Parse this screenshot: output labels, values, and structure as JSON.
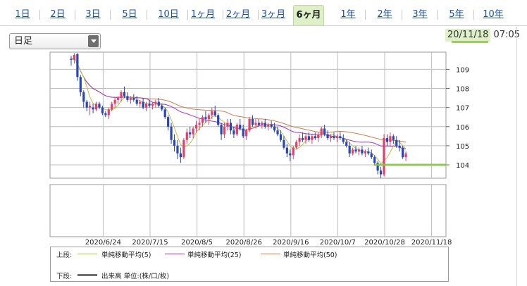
{
  "tabs": [
    {
      "label": "1日"
    },
    {
      "label": "2日"
    },
    {
      "label": "3日"
    },
    {
      "label": "5日"
    },
    {
      "label": "10日"
    },
    {
      "label": "1ヶ月"
    },
    {
      "label": "2ヶ月"
    },
    {
      "label": "3ヶ月"
    },
    {
      "label": "6ヶ月",
      "active": true
    },
    {
      "label": "1年"
    },
    {
      "label": "2年"
    },
    {
      "label": "3年"
    },
    {
      "label": "5年"
    },
    {
      "label": "10年"
    }
  ],
  "period_select": {
    "value": "日足"
  },
  "timestamp": {
    "date": "20/11/18",
    "time": "07:05"
  },
  "colors": {
    "up": "#e0406a",
    "down": "#2846b8",
    "ma5": "#bdbd45",
    "ma25": "#a433b8",
    "ma50": "#d07a4a",
    "highlight": "#8bc34a",
    "grid": "#bdbdbd"
  },
  "chart_data": {
    "type": "candlestick",
    "y_ticks": [
      104,
      105,
      106,
      107,
      108,
      109
    ],
    "ylim": [
      103.3,
      109.9
    ],
    "x_tick_labels": [
      "2020/6/24",
      "2020/7/15",
      "2020/8/5",
      "2020/8/26",
      "2020/9/16",
      "2020/10/7",
      "2020/10/28",
      "2020/11/18"
    ],
    "x_ticks_at_bar": [
      10,
      25,
      40,
      55,
      70,
      85,
      100,
      115
    ],
    "support_level": 104.0,
    "candles": [
      [
        109.55,
        109.7,
        109.2,
        109.5
      ],
      [
        109.5,
        109.85,
        109.3,
        109.75
      ],
      [
        109.8,
        109.85,
        108.4,
        108.6
      ],
      [
        108.6,
        108.7,
        107.6,
        107.8
      ],
      [
        107.8,
        107.9,
        107.0,
        107.3
      ],
      [
        107.3,
        107.4,
        106.8,
        107.0
      ],
      [
        107.0,
        107.3,
        106.6,
        107.1
      ],
      [
        107.0,
        107.2,
        106.7,
        106.9
      ],
      [
        106.9,
        107.3,
        106.8,
        107.2
      ],
      [
        107.2,
        107.3,
        106.9,
        107.0
      ],
      [
        107.0,
        107.1,
        106.6,
        106.7
      ],
      [
        106.7,
        106.8,
        106.5,
        106.6
      ],
      [
        106.6,
        107.0,
        106.4,
        106.9
      ],
      [
        106.9,
        107.3,
        106.8,
        107.2
      ],
      [
        107.2,
        107.5,
        107.0,
        107.4
      ],
      [
        107.4,
        107.6,
        107.2,
        107.5
      ],
      [
        107.5,
        107.9,
        107.3,
        107.8
      ],
      [
        107.8,
        108.1,
        107.5,
        107.6
      ],
      [
        107.6,
        107.8,
        107.3,
        107.4
      ],
      [
        107.4,
        107.6,
        107.2,
        107.5
      ],
      [
        107.5,
        107.7,
        107.3,
        107.4
      ],
      [
        107.4,
        107.6,
        107.1,
        107.2
      ],
      [
        107.2,
        107.4,
        107.0,
        107.3
      ],
      [
        107.3,
        107.5,
        106.9,
        107.0
      ],
      [
        107.0,
        107.3,
        106.8,
        107.2
      ],
      [
        107.2,
        107.4,
        107.0,
        107.1
      ],
      [
        107.1,
        107.3,
        106.9,
        107.2
      ],
      [
        107.2,
        107.4,
        107.0,
        107.3
      ],
      [
        107.3,
        107.5,
        107.0,
        107.1
      ],
      [
        107.1,
        107.2,
        106.8,
        106.9
      ],
      [
        106.9,
        107.0,
        106.4,
        106.5
      ],
      [
        106.5,
        106.6,
        105.8,
        106.0
      ],
      [
        106.0,
        106.2,
        105.1,
        105.3
      ],
      [
        105.3,
        105.6,
        104.7,
        105.0
      ],
      [
        105.0,
        105.3,
        104.3,
        104.6
      ],
      [
        104.6,
        104.9,
        104.1,
        104.4
      ],
      [
        104.4,
        105.4,
        104.3,
        105.3
      ],
      [
        105.3,
        105.9,
        105.1,
        105.7
      ],
      [
        105.7,
        106.0,
        105.4,
        105.6
      ],
      [
        105.6,
        106.0,
        105.4,
        105.9
      ],
      [
        105.9,
        106.3,
        105.7,
        106.1
      ],
      [
        106.1,
        106.4,
        105.8,
        106.2
      ],
      [
        106.2,
        106.6,
        106.0,
        106.5
      ],
      [
        106.5,
        106.8,
        106.2,
        106.4
      ],
      [
        106.4,
        106.7,
        106.1,
        106.6
      ],
      [
        106.6,
        107.0,
        106.4,
        106.8
      ],
      [
        106.8,
        107.1,
        106.5,
        106.6
      ],
      [
        106.6,
        106.7,
        106.0,
        106.1
      ],
      [
        106.1,
        106.2,
        105.3,
        105.6
      ],
      [
        105.6,
        106.2,
        105.4,
        106.0
      ],
      [
        106.0,
        106.4,
        105.8,
        106.2
      ],
      [
        106.2,
        106.4,
        105.6,
        105.8
      ],
      [
        105.8,
        106.0,
        105.4,
        105.6
      ],
      [
        105.6,
        106.2,
        105.5,
        106.1
      ],
      [
        106.1,
        106.4,
        105.8,
        105.9
      ],
      [
        105.9,
        106.1,
        105.4,
        105.5
      ],
      [
        105.5,
        105.9,
        105.3,
        105.8
      ],
      [
        105.8,
        106.5,
        105.7,
        106.4
      ],
      [
        106.4,
        106.6,
        106.0,
        106.1
      ],
      [
        106.1,
        106.4,
        105.9,
        106.2
      ],
      [
        106.2,
        106.4,
        106.0,
        106.1
      ],
      [
        106.1,
        106.3,
        105.9,
        106.2
      ],
      [
        106.2,
        106.4,
        105.9,
        106.0
      ],
      [
        106.0,
        106.2,
        105.8,
        106.1
      ],
      [
        106.1,
        106.3,
        105.9,
        106.0
      ],
      [
        106.0,
        106.2,
        105.7,
        105.8
      ],
      [
        105.8,
        106.0,
        105.5,
        105.6
      ],
      [
        105.6,
        105.8,
        105.2,
        105.3
      ],
      [
        105.3,
        105.5,
        104.8,
        104.9
      ],
      [
        104.9,
        105.1,
        104.4,
        104.6
      ],
      [
        104.6,
        104.8,
        104.2,
        104.5
      ],
      [
        104.5,
        105.0,
        104.3,
        104.9
      ],
      [
        104.9,
        105.3,
        104.8,
        105.2
      ],
      [
        105.2,
        105.6,
        105.0,
        105.4
      ],
      [
        105.4,
        105.7,
        105.2,
        105.3
      ],
      [
        105.3,
        105.6,
        105.1,
        105.5
      ],
      [
        105.5,
        105.7,
        105.2,
        105.3
      ],
      [
        105.3,
        105.6,
        105.1,
        105.5
      ],
      [
        105.5,
        105.7,
        105.3,
        105.4
      ],
      [
        105.4,
        105.7,
        105.2,
        105.6
      ],
      [
        105.6,
        106.0,
        105.4,
        105.9
      ],
      [
        105.9,
        106.1,
        105.5,
        105.6
      ],
      [
        105.6,
        105.8,
        105.3,
        105.4
      ],
      [
        105.4,
        105.6,
        105.2,
        105.5
      ],
      [
        105.5,
        105.7,
        105.3,
        105.4
      ],
      [
        105.4,
        105.6,
        105.2,
        105.5
      ],
      [
        105.5,
        105.7,
        105.3,
        105.4
      ],
      [
        105.4,
        105.6,
        105.1,
        105.2
      ],
      [
        105.2,
        105.3,
        104.9,
        105.0
      ],
      [
        105.0,
        105.2,
        104.4,
        104.6
      ],
      [
        104.6,
        104.9,
        104.5,
        104.8
      ],
      [
        104.8,
        105.0,
        104.6,
        104.7
      ],
      [
        104.7,
        104.9,
        104.5,
        104.8
      ],
      [
        104.8,
        105.0,
        104.5,
        104.6
      ],
      [
        104.6,
        104.8,
        104.4,
        104.7
      ],
      [
        104.7,
        104.9,
        104.5,
        104.6
      ],
      [
        104.6,
        104.8,
        104.3,
        104.4
      ],
      [
        104.4,
        104.5,
        104.0,
        104.1
      ],
      [
        104.1,
        104.2,
        103.5,
        103.7
      ],
      [
        103.7,
        103.9,
        103.3,
        103.5
      ],
      [
        103.5,
        105.6,
        103.4,
        105.4
      ],
      [
        105.4,
        105.6,
        105.0,
        105.2
      ],
      [
        105.2,
        105.7,
        105.0,
        105.5
      ],
      [
        105.5,
        105.6,
        105.1,
        105.3
      ],
      [
        105.3,
        105.5,
        104.9,
        105.0
      ],
      [
        105.0,
        105.3,
        104.7,
        104.9
      ],
      [
        104.9,
        105.0,
        104.3,
        104.4
      ],
      [
        104.4,
        104.7,
        104.2,
        104.6
      ]
    ]
  },
  "legend": {
    "upper_label": "上段:",
    "lower_label": "下段:",
    "ma5_label": "単純移動平均(5)",
    "ma25_label": "単純移動平均(25)",
    "ma50_label": "単純移動平均(50)",
    "volume_label": "出来高 単位:(株/口/枚)"
  }
}
